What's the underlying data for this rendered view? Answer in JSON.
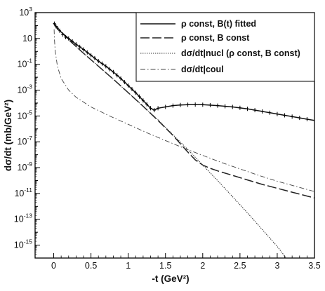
{
  "chart_data": {
    "type": "line",
    "xlabel": "-t (GeV²)",
    "ylabel": "dσ/dt (mb/GeV²)",
    "xlim": [
      -0.25,
      3.5
    ],
    "ylim_log10": [
      -16,
      3
    ],
    "y_scale": "log",
    "grid": false,
    "legend_position": "top-right",
    "x_ticks": [
      {
        "value": 0,
        "label": "0"
      },
      {
        "value": 0.5,
        "label": "0.5"
      },
      {
        "value": 1,
        "label": "1"
      },
      {
        "value": 1.5,
        "label": "1.5"
      },
      {
        "value": 2,
        "label": "2"
      },
      {
        "value": 2.5,
        "label": "2.5"
      },
      {
        "value": 3,
        "label": "3"
      },
      {
        "value": 3.5,
        "label": "3.5"
      }
    ],
    "y_ticks": [
      {
        "exp": 3,
        "base": "10",
        "sup": "3"
      },
      {
        "exp": 1,
        "base": "10",
        "sup": ""
      },
      {
        "exp": -1,
        "base": "10",
        "sup": "-1"
      },
      {
        "exp": -3,
        "base": "10",
        "sup": "-3"
      },
      {
        "exp": -5,
        "base": "10",
        "sup": "-5"
      },
      {
        "exp": -7,
        "base": "10",
        "sup": "-7"
      },
      {
        "exp": -9,
        "base": "10",
        "sup": "-9"
      },
      {
        "exp": -11,
        "base": "10",
        "sup": "-11"
      },
      {
        "exp": -13,
        "base": "10",
        "sup": "-13"
      },
      {
        "exp": -15,
        "base": "10",
        "sup": "-15"
      }
    ],
    "series": [
      {
        "name": "ρ const, B(t) fitted",
        "style": "solid",
        "x": [
          0,
          0.02,
          0.05,
          0.1,
          0.2,
          0.3,
          0.4,
          0.5,
          0.6,
          0.7,
          0.8,
          0.9,
          1.0,
          1.1,
          1.2,
          1.3,
          1.35,
          1.4,
          1.5,
          1.6,
          1.7,
          1.8,
          1.9,
          2.0,
          2.2,
          2.4,
          2.6,
          2.8,
          3.0,
          3.2,
          3.4,
          3.5
        ],
        "log10_y": [
          2.2,
          2.0,
          1.8,
          1.5,
          1.0,
          0.55,
          0.15,
          -0.3,
          -0.75,
          -1.15,
          -1.6,
          -2.1,
          -2.65,
          -3.2,
          -3.8,
          -4.4,
          -4.55,
          -4.4,
          -4.3,
          -4.2,
          -4.15,
          -4.13,
          -4.12,
          -4.13,
          -4.2,
          -4.3,
          -4.45,
          -4.65,
          -4.85,
          -5.05,
          -5.25,
          -5.35
        ]
      },
      {
        "name": "ρ const, B const",
        "style": "dashed",
        "x": [
          0,
          0.05,
          0.1,
          0.2,
          0.4,
          0.6,
          0.8,
          1.0,
          1.2,
          1.4,
          1.6,
          1.8,
          1.9,
          2.0,
          2.1,
          2.2,
          2.4,
          2.6,
          2.8,
          3.0,
          3.2,
          3.4,
          3.5
        ],
        "log10_y": [
          2.2,
          1.8,
          1.5,
          0.9,
          -0.15,
          -1.15,
          -2.15,
          -3.2,
          -4.25,
          -5.35,
          -6.5,
          -7.8,
          -8.4,
          -8.8,
          -9.05,
          -9.25,
          -9.6,
          -9.95,
          -10.3,
          -10.6,
          -10.9,
          -11.2,
          -11.35
        ]
      },
      {
        "name": "dσ/dt|nucl (ρ const, B const)",
        "style": "dotted",
        "x": [
          0,
          0.05,
          0.1,
          0.2,
          0.4,
          0.6,
          0.8,
          1.0,
          1.2,
          1.4,
          1.6,
          1.8,
          2.0,
          2.2,
          2.4,
          2.6,
          2.8,
          3.0,
          3.12
        ],
        "log10_y": [
          2.1,
          1.8,
          1.5,
          0.9,
          -0.15,
          -1.15,
          -2.15,
          -3.2,
          -4.25,
          -5.3,
          -6.45,
          -7.6,
          -8.8,
          -10.0,
          -11.25,
          -12.5,
          -13.8,
          -15.1,
          -16.0
        ]
      },
      {
        "name": "dσ/dt|coul",
        "style": "dashdot",
        "x": [
          0.005,
          0.01,
          0.02,
          0.05,
          0.1,
          0.2,
          0.3,
          0.5,
          0.75,
          1.0,
          1.25,
          1.5,
          1.75,
          2.0,
          2.25,
          2.5,
          2.75,
          3.0,
          3.25,
          3.5
        ],
        "log10_y": [
          1.7,
          0.9,
          0.0,
          -1.15,
          -2.1,
          -3.0,
          -3.55,
          -4.3,
          -5.0,
          -5.65,
          -6.3,
          -6.9,
          -7.5,
          -8.05,
          -8.6,
          -9.1,
          -9.6,
          -10.05,
          -10.45,
          -10.85
        ]
      }
    ],
    "measured_points": {
      "x": [
        0.01,
        0.03,
        0.05,
        0.08,
        0.12,
        0.16,
        0.2,
        0.25,
        0.3,
        0.35,
        0.4,
        0.45,
        0.5,
        0.55,
        0.6,
        0.65,
        0.7,
        0.75,
        0.8,
        0.85,
        0.9,
        0.95,
        1.0,
        1.05,
        1.1,
        1.15,
        1.2,
        1.25,
        1.3,
        1.35,
        1.4,
        1.5,
        1.6,
        1.7,
        1.8,
        1.9,
        2.0,
        2.1,
        2.2,
        2.3,
        2.4,
        2.5,
        2.6,
        2.7,
        2.8,
        2.9,
        3.0,
        3.1,
        3.2,
        3.3,
        3.4
      ],
      "log10_y": [
        2.15,
        1.95,
        1.8,
        1.6,
        1.3,
        1.1,
        1.0,
        0.78,
        0.55,
        0.35,
        0.15,
        -0.08,
        -0.3,
        -0.52,
        -0.75,
        -0.95,
        -1.15,
        -1.38,
        -1.6,
        -1.85,
        -2.1,
        -2.38,
        -2.65,
        -2.92,
        -3.2,
        -3.5,
        -3.8,
        -4.1,
        -4.4,
        -4.55,
        -4.4,
        -4.3,
        -4.2,
        -4.15,
        -4.13,
        -4.12,
        -4.13,
        -4.16,
        -4.2,
        -4.25,
        -4.3,
        -4.37,
        -4.45,
        -4.55,
        -4.65,
        -4.75,
        -4.85,
        -4.95,
        -5.05,
        -5.15,
        -5.25
      ]
    }
  }
}
